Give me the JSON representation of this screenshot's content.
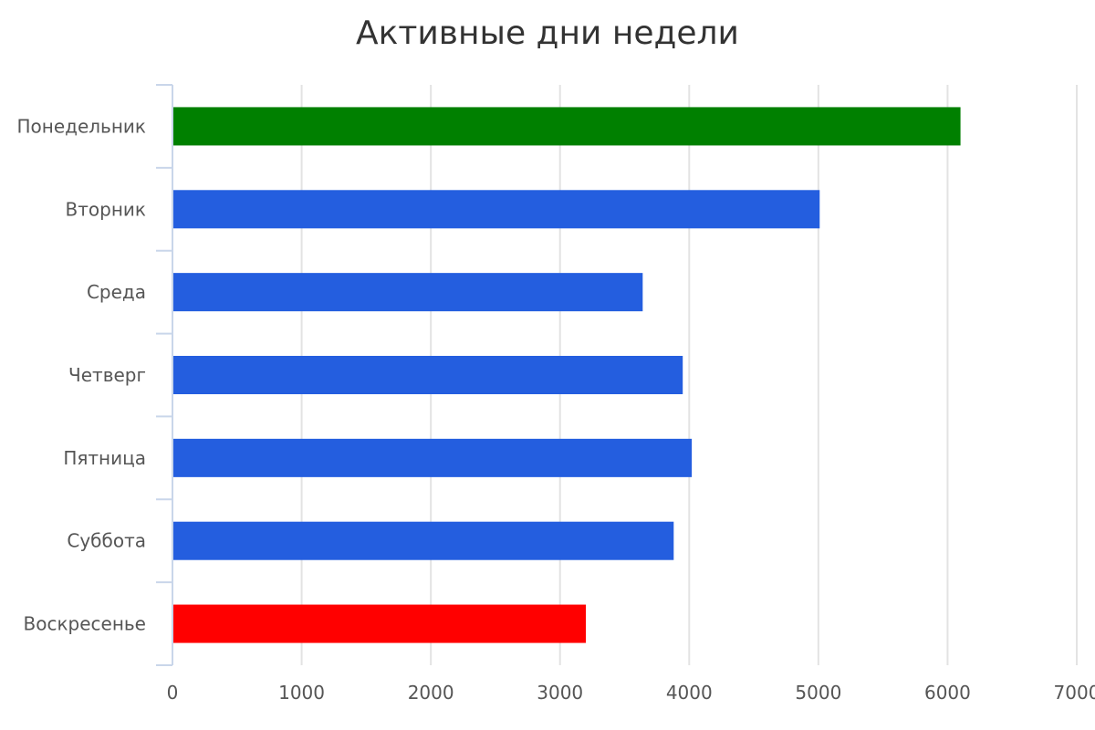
{
  "chart_data": {
    "type": "bar",
    "orientation": "horizontal",
    "title": "Активные дни недели",
    "xlabel": "",
    "ylabel": "",
    "categories": [
      "Понедельник",
      "Вторник",
      "Среда",
      "Четверг",
      "Пятница",
      "Суббота",
      "Воскресенье"
    ],
    "values": [
      6100,
      5010,
      3640,
      3950,
      4020,
      3880,
      3200
    ],
    "colors": [
      "#008000",
      "#245edf",
      "#245edf",
      "#245edf",
      "#245edf",
      "#245edf",
      "#ff0000"
    ],
    "xlim": [
      0,
      7000
    ],
    "xticks": [
      "0",
      "1000",
      "2000",
      "3000",
      "4000",
      "5000",
      "6000",
      "7000"
    ],
    "grid": true,
    "legend": "none"
  }
}
